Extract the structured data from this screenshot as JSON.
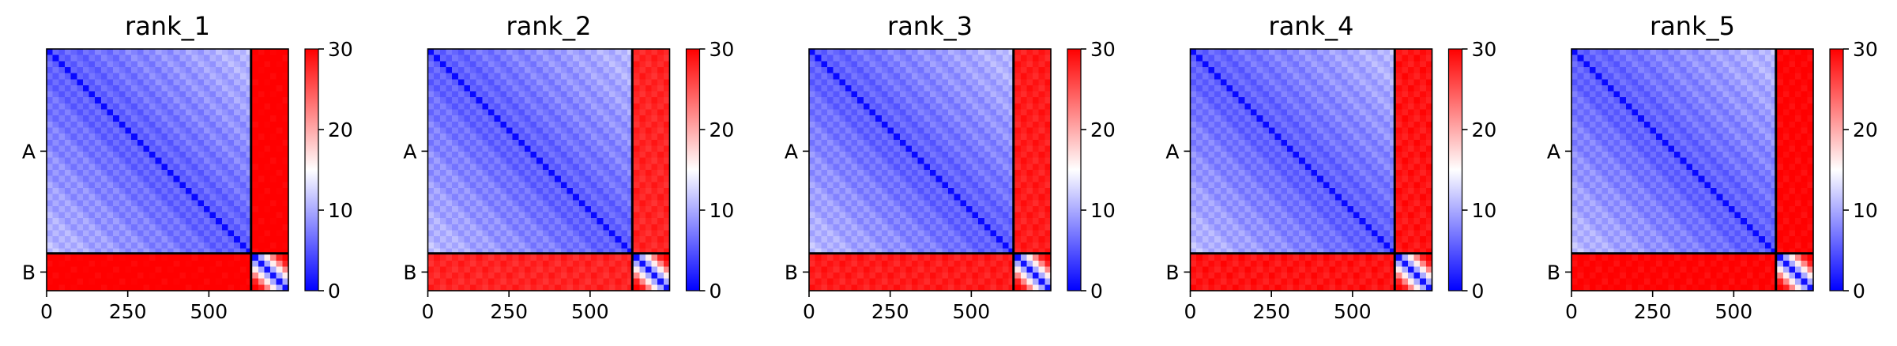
{
  "chart_data": {
    "type": "heatmap",
    "colormap": {
      "low": "#0000ff",
      "mid": "#ffffff",
      "high": "#ff0000"
    },
    "colorbar": {
      "range": [
        0,
        30
      ],
      "ticks": [
        "0",
        "10",
        "20",
        "30"
      ]
    },
    "x_range": [
      0,
      745
    ],
    "x_ticks": [
      "0",
      "250",
      "500"
    ],
    "chain_boundary": 630,
    "chains": [
      {
        "label": "A",
        "start": 0,
        "end": 630
      },
      {
        "label": "B",
        "start": 630,
        "end": 745
      }
    ],
    "panels": [
      {
        "title": "rank_1",
        "a_base": 4,
        "ab_base": 29.5
      },
      {
        "title": "rank_2",
        "a_base": 4,
        "ab_base": 27
      },
      {
        "title": "rank_3",
        "a_base": 4,
        "ab_base": 27.5
      },
      {
        "title": "rank_4",
        "a_base": 4,
        "ab_base": 28
      },
      {
        "title": "rank_5",
        "a_base": 4,
        "ab_base": 29
      }
    ]
  }
}
